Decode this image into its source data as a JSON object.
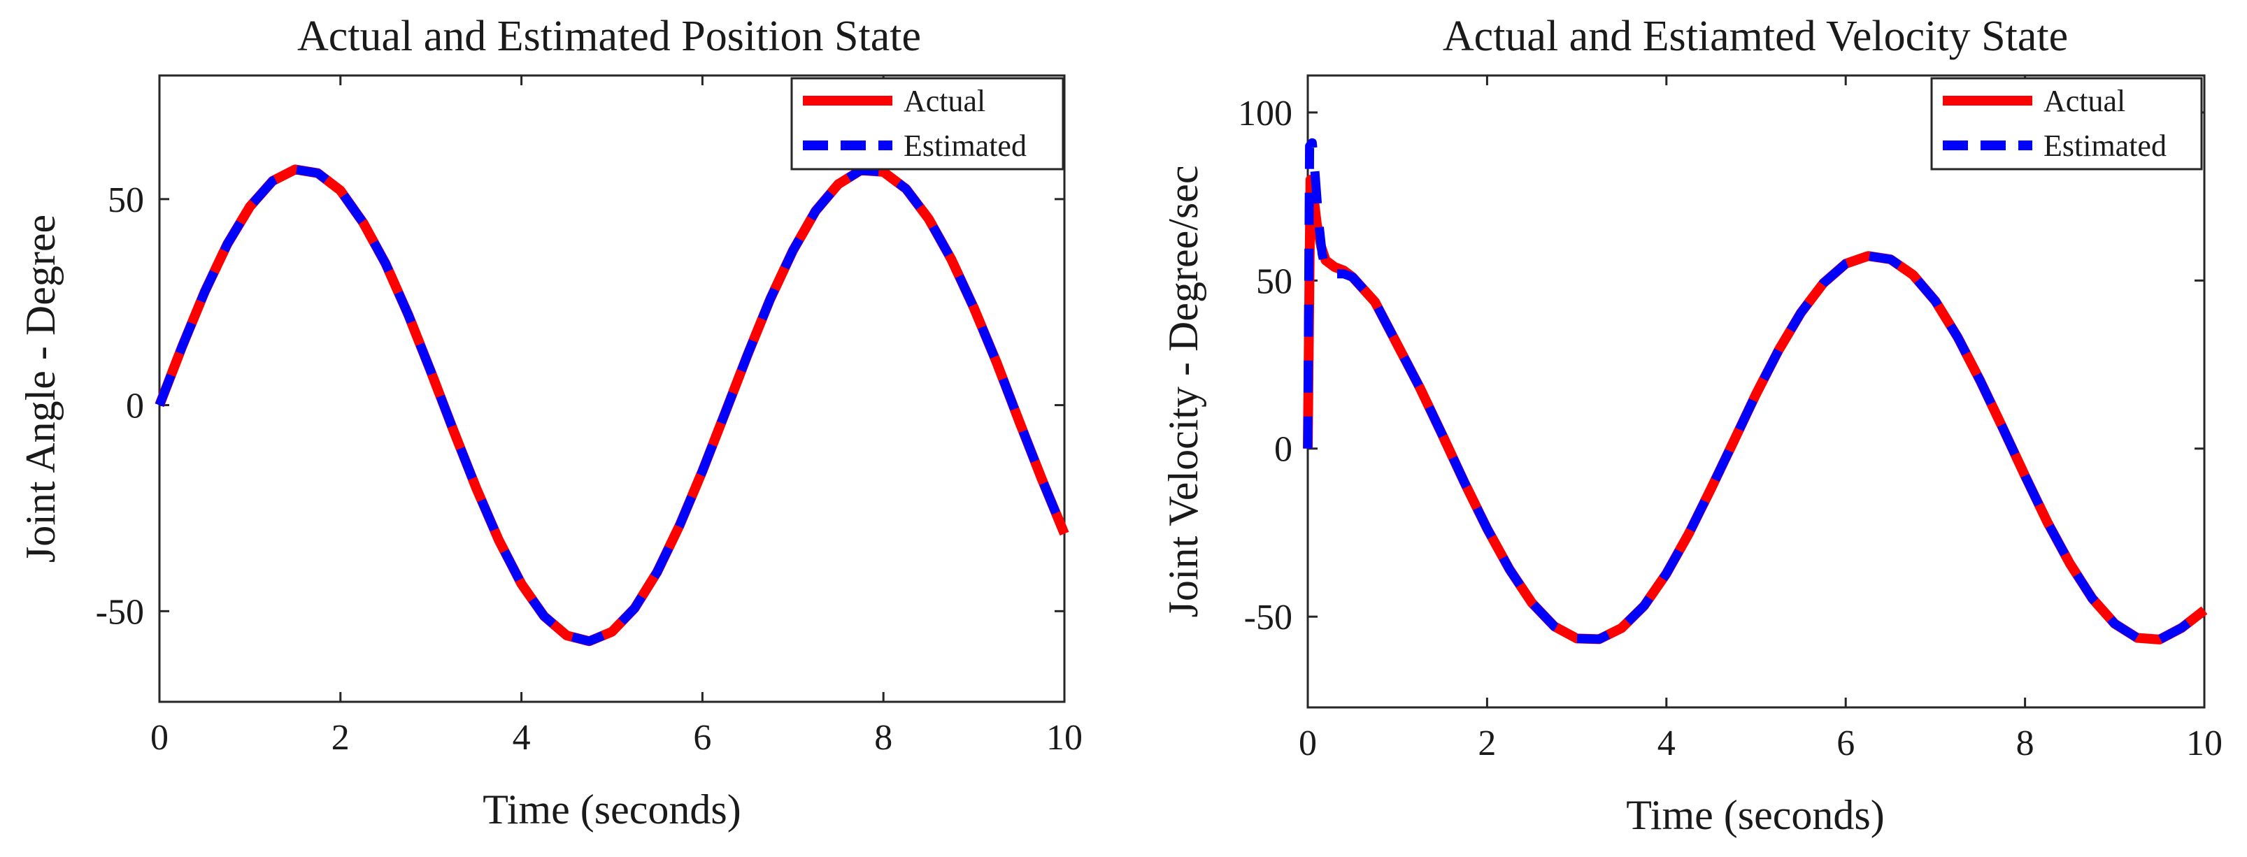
{
  "chart_data": [
    {
      "type": "line",
      "title": "Actual and Estimated Position State",
      "xlabel": "Time (seconds)",
      "ylabel": "Joint Angle - Degree",
      "xlim": [
        0,
        10
      ],
      "ylim": [
        -72,
        80
      ],
      "xticks": [
        0,
        2,
        4,
        6,
        8,
        10
      ],
      "xtick_labels": [
        "0",
        "2",
        "4",
        "6",
        "8",
        "10"
      ],
      "yticks": [
        -50,
        0,
        50
      ],
      "ytick_labels": [
        "-50",
        "0",
        "50"
      ],
      "legend_position": "top-right",
      "series": [
        {
          "name": "Actual",
          "color": "#ff0000",
          "style": "solid",
          "x": [
            0,
            0.25,
            0.5,
            0.75,
            1,
            1.25,
            1.5,
            1.75,
            2,
            2.25,
            2.5,
            2.75,
            3,
            3.25,
            3.5,
            3.75,
            4,
            4.25,
            4.5,
            4.75,
            5,
            5.25,
            5.5,
            5.75,
            6,
            6.25,
            6.5,
            6.75,
            7,
            7.25,
            7.5,
            7.75,
            8,
            8.25,
            8.5,
            8.75,
            9,
            9.25,
            9.5,
            9.75,
            10
          ],
          "y": [
            0,
            14.2,
            27.5,
            39.1,
            48.2,
            54.4,
            57.2,
            56.3,
            52.1,
            44.3,
            34.3,
            21.9,
            8.1,
            -6.2,
            -20.1,
            -32.8,
            -43.4,
            -51.2,
            -55.9,
            -57.3,
            -55.0,
            -49.3,
            -40.5,
            -29.1,
            -16.0,
            -1.9,
            12.3,
            25.8,
            37.5,
            47.1,
            53.6,
            57.0,
            56.6,
            52.5,
            45.2,
            35.4,
            23.6,
            10.4,
            -3.9,
            -17.9,
            -31.2
          ]
        },
        {
          "name": "Estimated",
          "color": "#0000ff",
          "style": "dashed",
          "x": [
            0,
            0.25,
            0.5,
            0.75,
            1,
            1.25,
            1.5,
            1.75,
            2,
            2.25,
            2.5,
            2.75,
            3,
            3.25,
            3.5,
            3.75,
            4,
            4.25,
            4.5,
            4.75,
            5,
            5.25,
            5.5,
            5.75,
            6,
            6.25,
            6.5,
            6.75,
            7,
            7.25,
            7.5,
            7.75,
            8,
            8.25,
            8.5,
            8.75,
            9,
            9.25,
            9.5,
            9.75,
            10
          ],
          "y": [
            0,
            14.2,
            27.5,
            39.1,
            48.2,
            54.4,
            57.2,
            56.3,
            52.1,
            44.3,
            34.3,
            21.9,
            8.1,
            -6.2,
            -20.1,
            -32.8,
            -43.4,
            -51.2,
            -55.9,
            -57.3,
            -55.0,
            -49.3,
            -40.5,
            -29.1,
            -16.0,
            -1.9,
            12.3,
            25.8,
            37.5,
            47.1,
            53.6,
            57.0,
            56.6,
            52.5,
            45.2,
            35.4,
            23.6,
            10.4,
            -3.9,
            -17.9,
            -31.2
          ]
        }
      ]
    },
    {
      "type": "line",
      "title": "Actual and Estiamted Velocity State",
      "xlabel": "Time (seconds)",
      "ylabel": "Joint Velocity - Degree/sec",
      "xlim": [
        0,
        10
      ],
      "ylim": [
        -77,
        111
      ],
      "xticks": [
        0,
        2,
        4,
        6,
        8,
        10
      ],
      "xtick_labels": [
        "0",
        "2",
        "4",
        "6",
        "8",
        "10"
      ],
      "yticks": [
        -50,
        0,
        50,
        100
      ],
      "ytick_labels": [
        "-50",
        "0",
        "50",
        "100"
      ],
      "legend_position": "top-right",
      "series": [
        {
          "name": "Actual",
          "color": "#ff0000",
          "style": "solid",
          "x": [
            0,
            0.03,
            0.06,
            0.1,
            0.15,
            0.2,
            0.3,
            0.4,
            0.5,
            0.75,
            1,
            1.25,
            1.5,
            1.75,
            2,
            2.25,
            2.5,
            2.75,
            3,
            3.25,
            3.5,
            3.75,
            4,
            4.25,
            4.5,
            4.75,
            5,
            5.25,
            5.5,
            5.75,
            6,
            6.25,
            6.5,
            6.75,
            7,
            7.25,
            7.5,
            7.75,
            8,
            8.25,
            8.5,
            8.75,
            9,
            9.25,
            9.5,
            9.75,
            10
          ],
          "y": [
            0,
            80,
            76,
            67,
            60,
            56,
            54,
            53,
            51,
            43.6,
            30.9,
            18.1,
            4.1,
            -10.2,
            -23.8,
            -35.9,
            -45.9,
            -52.9,
            -56.5,
            -56.7,
            -53.4,
            -46.8,
            -37.2,
            -25.3,
            -11.8,
            2.1,
            16.2,
            29.2,
            40.4,
            49.2,
            55.0,
            57.3,
            56.3,
            51.7,
            43.9,
            33.1,
            20.2,
            6.2,
            -8.1,
            -21.9,
            -34.2,
            -44.6,
            -52.1,
            -56.3,
            -56.8,
            -53.3,
            -48.1
          ]
        },
        {
          "name": "Estimated",
          "color": "#0000ff",
          "style": "dashed",
          "x": [
            0,
            0.02,
            0.05,
            0.08,
            0.12,
            0.16,
            0.2,
            0.3,
            0.4,
            0.5,
            0.75,
            1,
            1.25,
            1.5,
            1.75,
            2,
            2.25,
            2.5,
            2.75,
            3,
            3.25,
            3.5,
            3.75,
            4,
            4.25,
            4.5,
            4.75,
            5,
            5.25,
            5.5,
            5.75,
            6,
            6.25,
            6.5,
            6.75,
            7,
            7.25,
            7.5,
            7.75,
            8,
            8.25,
            8.5,
            8.75,
            9,
            9.25,
            9.5,
            9.75,
            10
          ],
          "y": [
            0,
            90,
            91,
            82,
            68,
            58,
            53,
            52,
            52,
            51,
            43.6,
            30.9,
            18.1,
            4.1,
            -10.2,
            -23.8,
            -35.9,
            -45.9,
            -52.9,
            -56.5,
            -56.7,
            -53.4,
            -46.8,
            -37.2,
            -25.3,
            -11.8,
            2.1,
            16.2,
            29.2,
            40.4,
            49.2,
            55.0,
            57.3,
            56.3,
            51.7,
            43.9,
            33.1,
            20.2,
            6.2,
            -8.1,
            -21.9,
            -34.2,
            -44.6,
            -52.1,
            -56.3,
            -56.8,
            -53.3,
            -48.1
          ]
        }
      ]
    }
  ]
}
